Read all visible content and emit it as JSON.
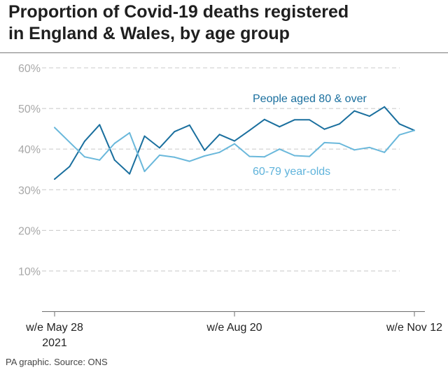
{
  "header": {
    "title_line1": "Proportion of Covid-19 deaths registered",
    "title_line2": "in England & Wales, by age group"
  },
  "footer": {
    "source": "PA graphic. Source: ONS"
  },
  "chart_data": {
    "type": "line",
    "title": "Proportion of Covid-19 deaths registered in England & Wales, by age group",
    "ylabel": "",
    "xlabel": "",
    "ylim": [
      0,
      60
    ],
    "yticks": [
      10,
      20,
      30,
      40,
      50,
      60
    ],
    "ytick_labels": [
      "10%",
      "20%",
      "30%",
      "40%",
      "50%",
      "60%"
    ],
    "x_count": 25,
    "x_tick_indices": [
      0,
      12,
      24
    ],
    "x_tick_labels": [
      [
        "w/e May 28",
        "2021"
      ],
      [
        "w/e Aug 20"
      ],
      [
        "w/e Nov 12"
      ]
    ],
    "grid": true,
    "series": [
      {
        "name": "People aged 80 & over",
        "color": "#1a6f9e",
        "label_color": "#1a6f9e",
        "values": [
          32.6,
          35.7,
          41.9,
          46.0,
          37.3,
          33.9,
          43.2,
          40.3,
          44.3,
          45.9,
          39.7,
          43.6,
          42.0,
          44.6,
          47.3,
          45.5,
          47.2,
          47.2,
          44.9,
          46.2,
          49.4,
          48.1,
          50.4,
          46.2,
          44.6
        ]
      },
      {
        "name": "60-79 year-olds",
        "color": "#6ab8db",
        "label_color": "#5fb3db",
        "values": [
          45.3,
          41.7,
          38.1,
          37.3,
          41.4,
          44.0,
          34.5,
          38.5,
          38.0,
          37.0,
          38.3,
          39.2,
          41.3,
          38.2,
          38.1,
          40.0,
          38.4,
          38.2,
          41.6,
          41.4,
          39.8,
          40.4,
          39.2,
          43.5,
          44.6
        ]
      }
    ]
  }
}
